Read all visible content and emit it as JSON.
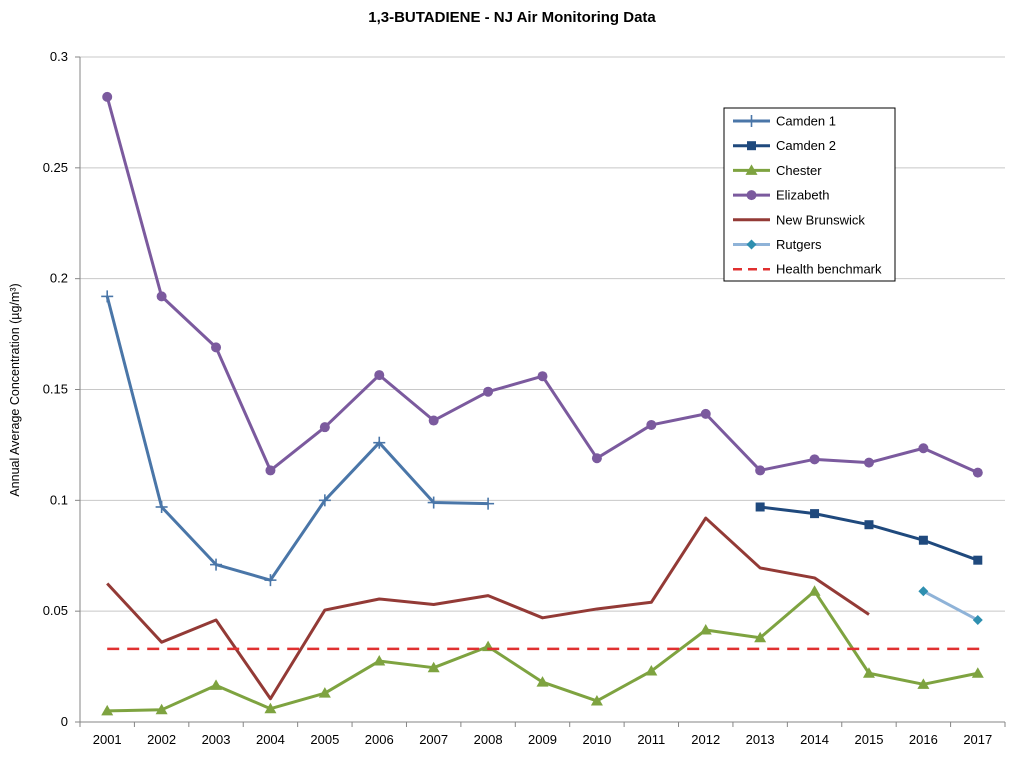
{
  "chart_data": {
    "type": "line",
    "title": "1,3-BUTADIENE - NJ Air Monitoring Data",
    "xlabel": "",
    "ylabel": "Annual Average Concentration (µg/m³)",
    "x": [
      2001,
      2002,
      2003,
      2004,
      2005,
      2006,
      2007,
      2008,
      2009,
      2010,
      2011,
      2012,
      2013,
      2014,
      2015,
      2016,
      2017
    ],
    "ylim": [
      0,
      0.3
    ],
    "yticks": [
      "0",
      "0.05",
      "0.1",
      "0.15",
      "0.2",
      "0.25",
      "0.3"
    ],
    "grid": true,
    "legend_position": "top-right",
    "series": [
      {
        "name": "Camden 1",
        "color": "#4a76a8",
        "marker": "plus",
        "values": [
          0.192,
          0.097,
          0.071,
          0.064,
          0.1,
          0.126,
          0.099,
          0.0985,
          null,
          null,
          null,
          null,
          null,
          null,
          null,
          null,
          null
        ]
      },
      {
        "name": "Camden 2",
        "color": "#1f497d",
        "marker": "square",
        "values": [
          null,
          null,
          null,
          null,
          null,
          null,
          null,
          null,
          null,
          null,
          null,
          null,
          0.097,
          0.094,
          0.089,
          0.082,
          0.073
        ]
      },
      {
        "name": "Chester",
        "color": "#7ea340",
        "marker": "triangle",
        "values": [
          0.005,
          0.0055,
          0.0165,
          0.006,
          0.013,
          0.0275,
          0.0245,
          0.034,
          0.018,
          0.0095,
          0.023,
          0.0415,
          0.038,
          0.059,
          0.022,
          0.017,
          0.022
        ]
      },
      {
        "name": "Elizabeth",
        "color": "#7b5a9e",
        "marker": "circle",
        "values": [
          0.282,
          0.192,
          0.169,
          0.1135,
          0.133,
          0.1565,
          0.136,
          0.149,
          0.156,
          0.119,
          0.134,
          0.139,
          0.1135,
          0.1185,
          0.117,
          0.1235,
          0.1125
        ]
      },
      {
        "name": "New Brunswick",
        "color": "#933a36",
        "marker": "none",
        "values": [
          0.0625,
          0.036,
          0.046,
          0.0105,
          0.0505,
          0.0555,
          0.053,
          0.057,
          0.047,
          0.051,
          0.054,
          0.092,
          0.0695,
          0.065,
          0.0485,
          null,
          null
        ]
      },
      {
        "name": "Rutgers",
        "color": "#8fb3d8",
        "marker": "diamond",
        "marker_color": "#2e8fb0",
        "values": [
          null,
          null,
          null,
          null,
          null,
          null,
          null,
          null,
          null,
          null,
          null,
          null,
          null,
          null,
          null,
          0.059,
          0.046
        ]
      },
      {
        "name": "Health benchmark",
        "color": "#e03030",
        "marker": "none",
        "dashed": true,
        "values": [
          0.033,
          0.033,
          0.033,
          0.033,
          0.033,
          0.033,
          0.033,
          0.033,
          0.033,
          0.033,
          0.033,
          0.033,
          0.033,
          0.033,
          0.033,
          0.033,
          0.033
        ]
      }
    ]
  }
}
